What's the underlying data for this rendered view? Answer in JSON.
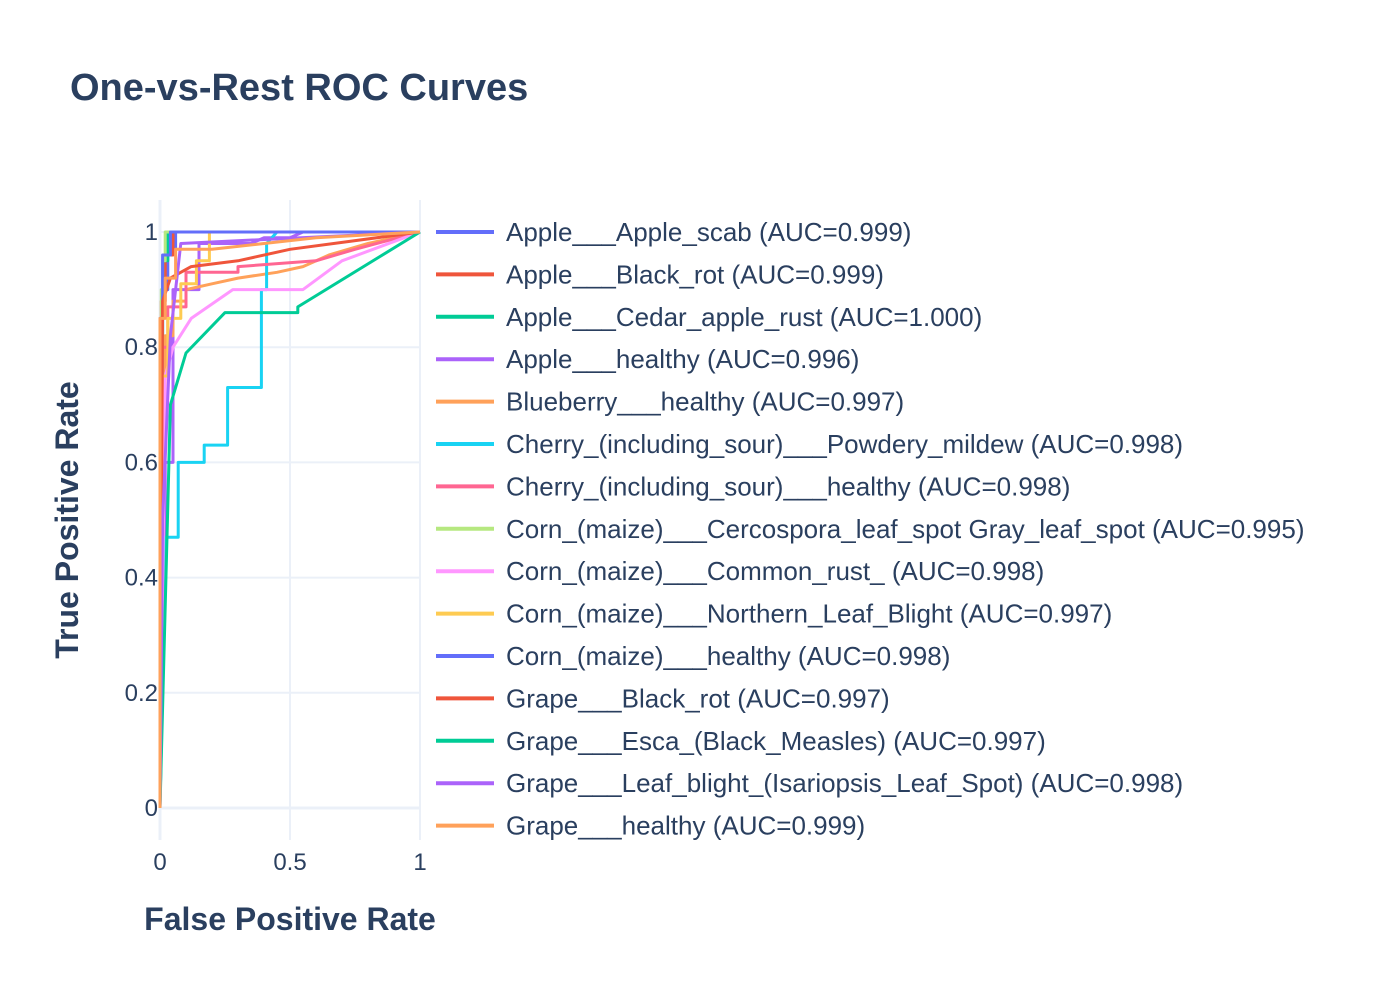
{
  "chart_data": {
    "type": "line",
    "title": "One-vs-Rest ROC Curves",
    "xlabel": "False Positive Rate",
    "ylabel": "True Positive Rate",
    "xlim": [
      0,
      1
    ],
    "ylim": [
      0,
      1
    ],
    "x_ticks": [
      "0",
      "0.5",
      "1"
    ],
    "y_ticks": [
      "0",
      "0.2",
      "0.4",
      "0.6",
      "0.8",
      "1"
    ],
    "grid": true,
    "legend_position": "right",
    "series": [
      {
        "name": "Apple___Apple_scab (AUC=0.999)",
        "color": "#636efa",
        "x": [
          0,
          0,
          0.01,
          0.01,
          0.03,
          0.03,
          0.06,
          0.06,
          1
        ],
        "y": [
          0,
          0.6,
          0.6,
          0.9,
          0.9,
          0.97,
          0.97,
          1,
          1
        ]
      },
      {
        "name": "Apple___Black_rot (AUC=0.999)",
        "color": "#ef553b",
        "x": [
          0,
          0,
          0.005,
          0.005,
          0.02,
          0.02,
          0.05,
          0.05,
          1
        ],
        "y": [
          0,
          0.73,
          0.73,
          0.88,
          0.88,
          0.96,
          0.96,
          1,
          1
        ]
      },
      {
        "name": "Apple___Cedar_apple_rust (AUC=1.000)",
        "color": "#00cc96",
        "x": [
          0,
          0,
          0.01,
          0.01,
          0.03,
          0.03,
          1
        ],
        "y": [
          0,
          0.8,
          0.8,
          0.95,
          0.95,
          1,
          1
        ]
      },
      {
        "name": "Apple___healthy (AUC=0.996)",
        "color": "#ab63fa",
        "x": [
          0,
          0.02,
          0.02,
          0.05,
          0.05,
          0.15,
          0.15,
          0.32,
          0.35,
          0.4,
          0.5,
          0.55,
          1
        ],
        "y": [
          0,
          0.45,
          0.6,
          0.6,
          0.9,
          0.9,
          0.98,
          0.98,
          0.98,
          0.99,
          0.99,
          1,
          1
        ]
      },
      {
        "name": "Blueberry___healthy (AUC=0.997)",
        "color": "#ffa15a",
        "x": [
          0,
          0,
          0.02,
          0.02,
          0.05,
          0.05,
          0.1,
          0.1,
          0.2,
          0.3,
          0.45,
          0.55,
          0.65,
          0.8,
          1
        ],
        "y": [
          0,
          0.7,
          0.7,
          0.82,
          0.82,
          0.88,
          0.88,
          0.9,
          0.91,
          0.92,
          0.93,
          0.94,
          0.96,
          0.98,
          1
        ]
      },
      {
        "name": "Cherry_(including_sour)___Powdery_mildew (AUC=0.998)",
        "color": "#19d3f3",
        "x": [
          0,
          0.02,
          0.02,
          0.07,
          0.07,
          0.17,
          0.17,
          0.26,
          0.26,
          0.39,
          0.39,
          0.41,
          0.41,
          0.45,
          1
        ],
        "y": [
          0,
          0.47,
          0.47,
          0.47,
          0.6,
          0.6,
          0.63,
          0.63,
          0.73,
          0.73,
          0.9,
          0.9,
          0.98,
          1,
          1
        ]
      },
      {
        "name": "Cherry_(including_sour)___healthy (AUC=0.998)",
        "color": "#ff6692",
        "x": [
          0,
          0,
          0.03,
          0.03,
          0.1,
          0.1,
          0.3,
          0.3,
          0.6,
          0.75,
          1
        ],
        "y": [
          0,
          0.8,
          0.8,
          0.87,
          0.87,
          0.93,
          0.93,
          0.94,
          0.95,
          0.97,
          1
        ]
      },
      {
        "name": "Corn_(maize)___Cercospora_leaf_spot Gray_leaf_spot (AUC=0.995)",
        "color": "#b6e880",
        "x": [
          0,
          0,
          0.005,
          0.005,
          0.01,
          0.01,
          0.02,
          0.02,
          1
        ],
        "y": [
          0,
          0.7,
          0.7,
          0.9,
          0.9,
          0.95,
          0.95,
          1,
          1
        ]
      },
      {
        "name": "Corn_(maize)___Common_rust_ (AUC=0.998)",
        "color": "#ff97ff",
        "x": [
          0,
          0.02,
          0.02,
          0.05,
          0.05,
          0.12,
          0.12,
          0.28,
          0.28,
          0.4,
          0.45,
          0.55,
          0.7,
          1
        ],
        "y": [
          0,
          0.75,
          0.75,
          0.8,
          0.8,
          0.85,
          0.85,
          0.9,
          0.9,
          0.9,
          0.9,
          0.9,
          0.95,
          1
        ]
      },
      {
        "name": "Corn_(maize)___Northern_Leaf_Blight (AUC=0.997)",
        "color": "#fecb52",
        "x": [
          0,
          0,
          0.03,
          0.03,
          0.08,
          0.08,
          0.14,
          0.14,
          0.19,
          0.19,
          1
        ],
        "y": [
          0,
          0.75,
          0.75,
          0.85,
          0.85,
          0.91,
          0.91,
          0.95,
          0.95,
          1,
          1
        ]
      },
      {
        "name": "Corn_(maize)___healthy (AUC=0.998)",
        "color": "#636efa",
        "x": [
          0,
          0,
          0.01,
          0.01,
          0.04,
          0.04,
          1
        ],
        "y": [
          0,
          0.85,
          0.85,
          0.96,
          0.96,
          1,
          1
        ]
      },
      {
        "name": "Grape___Black_rot (AUC=0.997)",
        "color": "#ef553b",
        "x": [
          0,
          0.01,
          0.01,
          0.04,
          0.04,
          0.12,
          0.12,
          0.3,
          0.3,
          0.5,
          1
        ],
        "y": [
          0,
          0.88,
          0.88,
          0.92,
          0.92,
          0.94,
          0.94,
          0.95,
          0.95,
          0.97,
          1
        ]
      },
      {
        "name": "Grape___Esca_(Black_Measles) (AUC=0.997)",
        "color": "#00cc96",
        "x": [
          0,
          0.04,
          0.04,
          0.1,
          0.1,
          0.25,
          0.25,
          0.53,
          0.53,
          1
        ],
        "y": [
          0,
          0.7,
          0.7,
          0.79,
          0.79,
          0.86,
          0.86,
          0.86,
          0.87,
          1
        ]
      },
      {
        "name": "Grape___Leaf_blight_(Isariopsis_Leaf_Spot) (AUC=0.998)",
        "color": "#ab63fa",
        "x": [
          0,
          0.01,
          0.01,
          0.04,
          0.04,
          0.08,
          0.08,
          1
        ],
        "y": [
          0,
          0.5,
          0.5,
          0.82,
          0.82,
          0.98,
          0.98,
          1
        ]
      },
      {
        "name": "Grape___healthy (AUC=0.999)",
        "color": "#ffa15a",
        "x": [
          0,
          0,
          0.02,
          0.02,
          0.06,
          0.06,
          0.2,
          0.4,
          0.6,
          1
        ],
        "y": [
          0,
          0.85,
          0.85,
          0.92,
          0.92,
          0.97,
          0.97,
          0.98,
          0.99,
          1
        ]
      }
    ]
  }
}
